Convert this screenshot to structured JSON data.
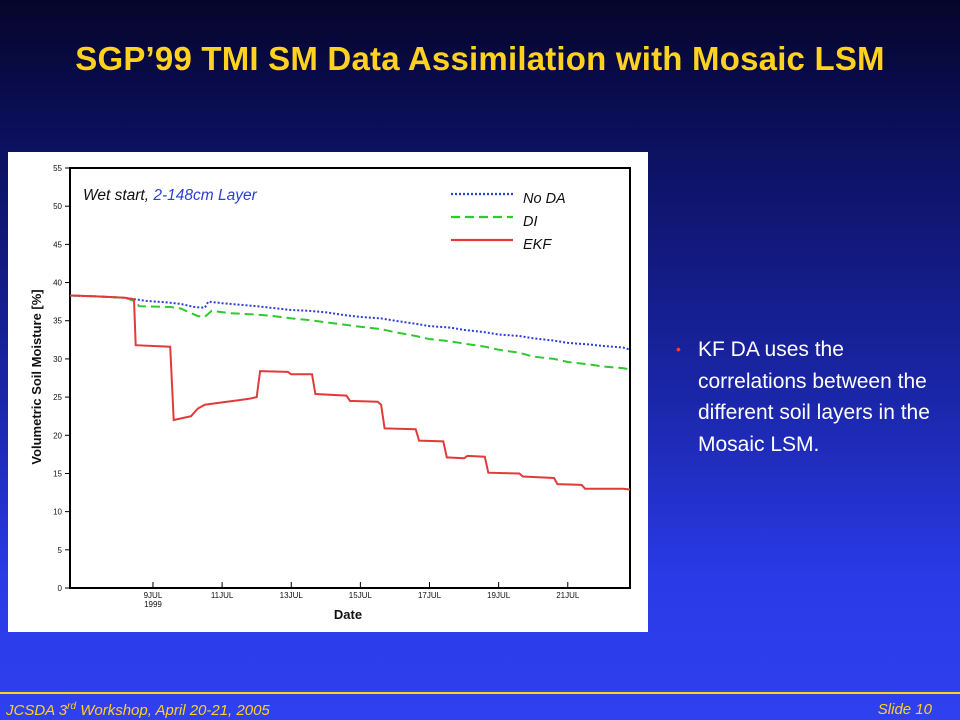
{
  "slide": {
    "title": "SGP’99 TMI SM Data Assimilation with Mosaic LSM",
    "bullets": [
      "KF DA uses the correlations between the different soil layers in the Mosaic LSM."
    ],
    "footer_left_pre": "JCSDA 3",
    "footer_left_sup": "rd",
    "footer_left_post": " Workshop, April 20-21, 2005",
    "footer_right": "Slide 10",
    "colors": {
      "title": "#ffd21f",
      "bullet_dot": "#ff3b3b",
      "footer": "#ffd21f"
    }
  },
  "chart_data": {
    "type": "line",
    "annotation_prefix": "Wet start, ",
    "annotation_suffix": "2-148cm Layer",
    "xlabel": "Date",
    "ylabel": "Volumetric Soil Moisture [%]",
    "ylim": [
      0,
      55
    ],
    "xlim": [
      6.6,
      22.8
    ],
    "yticks": [
      0,
      5,
      10,
      15,
      20,
      25,
      30,
      35,
      40,
      45,
      50,
      55
    ],
    "xticks": [
      {
        "x": 9,
        "label": "9JUL",
        "sublabel": "1999"
      },
      {
        "x": 11,
        "label": "11JUL",
        "sublabel": ""
      },
      {
        "x": 13,
        "label": "13JUL",
        "sublabel": ""
      },
      {
        "x": 15,
        "label": "15JUL",
        "sublabel": ""
      },
      {
        "x": 17,
        "label": "17JUL",
        "sublabel": ""
      },
      {
        "x": 19,
        "label": "19JUL",
        "sublabel": ""
      },
      {
        "x": 21,
        "label": "21JUL",
        "sublabel": ""
      }
    ],
    "legend_position": "top-right",
    "series": [
      {
        "name": "No DA",
        "color": "#2a3fd8",
        "dash": "2,2",
        "x": [
          6.6,
          7.3,
          8.2,
          8.8,
          9.4,
          9.8,
          10.2,
          10.5,
          10.6,
          11.0,
          11.5,
          12.0,
          12.6,
          13.0,
          13.5,
          14.0,
          14.6,
          15.0,
          15.6,
          16.0,
          16.6,
          17.0,
          17.6,
          18.0,
          18.6,
          19.0,
          19.6,
          20.0,
          20.6,
          21.0,
          21.6,
          22.0,
          22.6,
          22.8
        ],
        "y": [
          38.3,
          38.2,
          38.0,
          37.6,
          37.4,
          37.2,
          36.8,
          36.7,
          37.5,
          37.3,
          37.1,
          36.9,
          36.6,
          36.4,
          36.3,
          36.1,
          35.7,
          35.5,
          35.3,
          35.0,
          34.6,
          34.3,
          34.1,
          33.8,
          33.5,
          33.2,
          33.0,
          32.7,
          32.4,
          32.1,
          31.9,
          31.7,
          31.5,
          31.2
        ]
      },
      {
        "name": "DI",
        "color": "#2ec92e",
        "dash": "9,5",
        "x": [
          6.6,
          7.3,
          8.2,
          8.5,
          8.6,
          9.5,
          9.8,
          10.3,
          10.5,
          10.7,
          11.2,
          12.0,
          12.5,
          13.0,
          13.5,
          14.0,
          14.5,
          15.0,
          15.6,
          16.0,
          16.6,
          17.0,
          17.6,
          18.0,
          18.6,
          19.0,
          19.6,
          20.0,
          20.6,
          21.0,
          21.6,
          22.0,
          22.6,
          22.8
        ],
        "y": [
          38.3,
          38.2,
          38.0,
          37.5,
          36.9,
          36.8,
          36.6,
          35.6,
          35.5,
          36.3,
          36.0,
          35.8,
          35.6,
          35.3,
          35.1,
          34.8,
          34.5,
          34.2,
          33.9,
          33.5,
          33.0,
          32.6,
          32.3,
          32.0,
          31.6,
          31.2,
          30.8,
          30.3,
          30.0,
          29.6,
          29.3,
          29.0,
          28.8,
          28.6
        ]
      },
      {
        "name": "EKF",
        "color": "#e23a3a",
        "dash": "",
        "x": [
          6.6,
          7.3,
          8.2,
          8.45,
          8.5,
          9.5,
          9.6,
          9.8,
          10.1,
          10.3,
          10.5,
          11.0,
          11.5,
          11.8,
          12.0,
          12.1,
          12.9,
          13.0,
          13.6,
          13.7,
          14.6,
          14.7,
          15.5,
          15.6,
          15.7,
          16.6,
          16.7,
          17.4,
          17.5,
          18.0,
          18.1,
          18.6,
          18.7,
          19.6,
          19.7,
          20.6,
          20.7,
          21.4,
          21.5,
          22.0,
          22.6,
          22.8
        ],
        "y": [
          38.3,
          38.2,
          38.0,
          37.8,
          31.8,
          31.6,
          22.0,
          22.2,
          22.5,
          23.5,
          24.0,
          24.3,
          24.6,
          24.8,
          25.0,
          28.4,
          28.3,
          28.0,
          28.0,
          25.4,
          25.2,
          24.5,
          24.4,
          24.0,
          20.9,
          20.8,
          19.3,
          19.2,
          17.1,
          17.0,
          17.3,
          17.2,
          15.1,
          15.0,
          14.6,
          14.4,
          13.6,
          13.5,
          13.0,
          13.0,
          13.0,
          12.9
        ]
      }
    ]
  }
}
